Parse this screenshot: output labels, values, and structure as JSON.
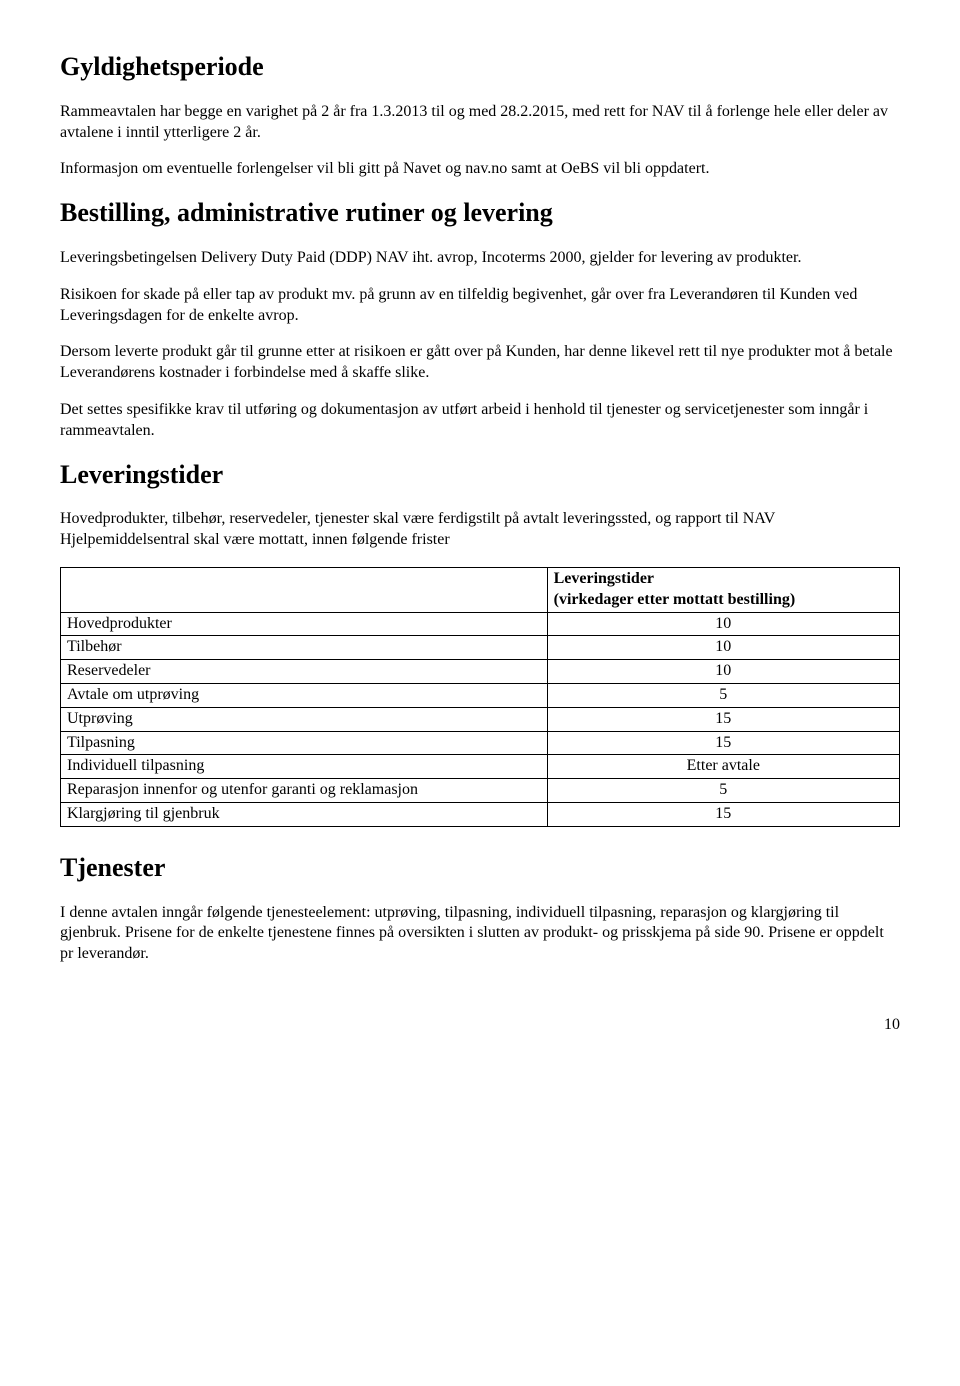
{
  "section1": {
    "heading": "Gyldighetsperiode",
    "p1": "Rammeavtalen har begge en varighet på 2 år fra 1.3.2013 til og med 28.2.2015, med rett for NAV til å forlenge hele eller deler av avtalene i inntil ytterligere 2 år.",
    "p2": "Informasjon om eventuelle forlengelser vil bli gitt på Navet og nav.no samt at OeBS vil bli oppdatert."
  },
  "section2": {
    "heading": "Bestilling, administrative rutiner og levering",
    "p1": "Leveringsbetingelsen Delivery Duty Paid (DDP) NAV iht. avrop, Incoterms 2000, gjelder for levering av produkter.",
    "p2": "Risikoen for skade på eller tap av produkt mv. på grunn av en tilfeldig begivenhet, går over fra Leverandøren til Kunden ved Leveringsdagen for de enkelte avrop.",
    "p3": "Dersom leverte produkt går til grunne etter at risikoen er gått over på Kunden, har denne likevel rett til nye produkter mot å betale Leverandørens kostnader i forbindelse med å skaffe slike.",
    "p4": "Det settes spesifikke krav til utføring og dokumentasjon av utført arbeid i henhold til tjenester og servicetjenester som inngår i rammeavtalen."
  },
  "section3": {
    "heading": "Leveringstider",
    "p1": "Hovedprodukter, tilbehør, reservedeler, tjenester skal være ferdigstilt på avtalt leveringssted, og rapport til NAV Hjelpemiddelsentral skal være mottatt, innen følgende frister"
  },
  "table": {
    "header_col2_line1": "Leveringstider",
    "header_col2_line2": "(virkedager etter mottatt bestilling)",
    "rows": [
      {
        "label": "Hovedprodukter",
        "value": "10"
      },
      {
        "label": "Tilbehør",
        "value": "10"
      },
      {
        "label": "Reservedeler",
        "value": "10"
      },
      {
        "label": "Avtale om utprøving",
        "value": "5"
      },
      {
        "label": "Utprøving",
        "value": "15"
      },
      {
        "label": "Tilpasning",
        "value": "15"
      },
      {
        "label": "Individuell tilpasning",
        "value": "Etter avtale"
      },
      {
        "label": "Reparasjon innenfor og utenfor garanti og reklamasjon",
        "value": "5"
      },
      {
        "label": "Klargjøring til gjenbruk",
        "value": "15"
      }
    ]
  },
  "section4": {
    "heading": "Tjenester",
    "p1": "I denne avtalen inngår følgende tjenesteelement: utprøving, tilpasning, individuell tilpasning, reparasjon og klargjøring til gjenbruk. Prisene for de enkelte tjenestene finnes på oversikten i slutten av produkt- og prisskjema på side 90. Prisene er oppdelt pr leverandør."
  },
  "page_number": "10"
}
